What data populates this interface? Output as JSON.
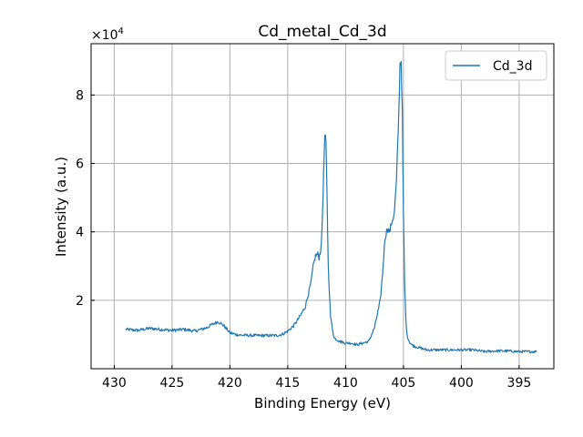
{
  "chart_data": {
    "type": "line",
    "title": "Cd_metal_Cd_3d",
    "xlabel": "Binding Energy (eV)",
    "ylabel": "Intensity (a.u.)",
    "y_multiplier_label": "×10",
    "y_multiplier_exp": "4",
    "xlim": [
      432.0,
      392.0
    ],
    "ylim": [
      0.0,
      9.5
    ],
    "x_ticks": [
      430,
      425,
      420,
      415,
      410,
      405,
      400,
      395
    ],
    "y_ticks": [
      2,
      4,
      6,
      8
    ],
    "grid": true,
    "legend_position": "top-right",
    "series": [
      {
        "name": "Cd_3d",
        "color": "#1f77b4",
        "x": [
          429.0,
          428.0,
          427.0,
          426.0,
          425.0,
          424.0,
          423.0,
          422.0,
          421.5,
          421.0,
          420.5,
          420.0,
          419.5,
          419.0,
          418.0,
          417.0,
          416.0,
          415.5,
          415.0,
          414.5,
          414.0,
          413.5,
          413.0,
          412.8,
          412.6,
          412.4,
          412.3,
          412.2,
          412.1,
          412.0,
          411.9,
          411.8,
          411.7,
          411.6,
          411.5,
          411.3,
          411.0,
          410.5,
          410.0,
          409.5,
          409.0,
          408.5,
          408.0,
          407.5,
          407.0,
          406.8,
          406.6,
          406.4,
          406.2,
          406.0,
          405.8,
          405.6,
          405.4,
          405.3,
          405.2,
          405.1,
          405.0,
          404.9,
          404.8,
          404.7,
          404.5,
          404.3,
          404.0,
          403.5,
          403.0,
          402.0,
          401.0,
          400.0,
          399.0,
          398.0,
          397.0,
          396.0,
          395.0,
          394.0,
          393.5
        ],
        "values": [
          1.15,
          1.12,
          1.18,
          1.15,
          1.12,
          1.15,
          1.1,
          1.2,
          1.3,
          1.38,
          1.25,
          1.05,
          1.0,
          0.98,
          0.97,
          0.97,
          0.97,
          1.0,
          1.1,
          1.25,
          1.5,
          1.8,
          2.5,
          3.0,
          3.3,
          3.35,
          3.25,
          3.4,
          3.6,
          4.5,
          5.7,
          6.8,
          6.6,
          5.0,
          3.0,
          1.5,
          0.9,
          0.8,
          0.75,
          0.75,
          0.7,
          0.75,
          0.8,
          1.2,
          2.0,
          2.8,
          3.8,
          4.1,
          4.0,
          4.3,
          4.5,
          5.5,
          7.5,
          8.9,
          9.0,
          7.5,
          4.5,
          2.5,
          1.5,
          1.0,
          0.8,
          0.7,
          0.65,
          0.6,
          0.55,
          0.55,
          0.55,
          0.55,
          0.55,
          0.5,
          0.52,
          0.52,
          0.5,
          0.5,
          0.5
        ]
      }
    ]
  }
}
